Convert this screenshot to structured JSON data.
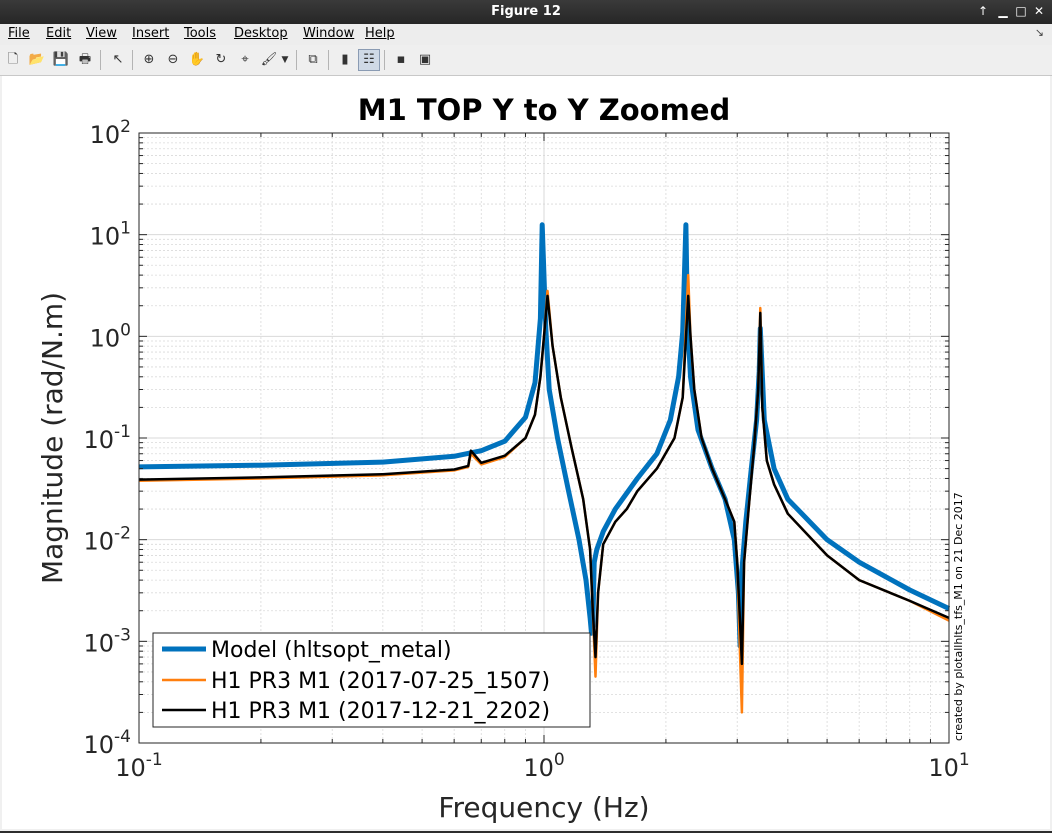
{
  "window": {
    "title": "Figure 12"
  },
  "menu": [
    "File",
    "Edit",
    "View",
    "Insert",
    "Tools",
    "Desktop",
    "Window",
    "Help"
  ],
  "toolbar": {
    "icons": [
      "new-figure-icon",
      "open-file-icon",
      "save-icon",
      "print-icon",
      "pointer-icon",
      "zoom-in-icon",
      "zoom-out-icon",
      "pan-hand-icon",
      "rotate-3d-icon",
      "data-cursor-icon",
      "brush-icon",
      "dropdown-arrow-icon",
      "link-plot-icon",
      "colorbar-icon",
      "legend-icon",
      "hide-plot-tools-icon",
      "show-plot-tools-icon"
    ]
  },
  "colors": {
    "model": "#0072bd",
    "jul": "#ff7f0e",
    "dec": "#000000",
    "grid": "#d9d9d9"
  },
  "chart_data": {
    "type": "line",
    "title": "M1 TOP Y to Y Zoomed",
    "xlabel": "Frequency (Hz)",
    "ylabel": "Magnitude (rad/N.m)",
    "xscale": "log",
    "yscale": "log",
    "xlim": [
      0.1,
      10
    ],
    "ylim": [
      0.0001,
      100
    ],
    "x_ticks": [
      {
        "base": "10",
        "exp": "-1"
      },
      {
        "base": "10",
        "exp": "0"
      },
      {
        "base": "10",
        "exp": "1"
      }
    ],
    "y_ticks": [
      {
        "base": "10",
        "exp": "-4"
      },
      {
        "base": "10",
        "exp": "-3"
      },
      {
        "base": "10",
        "exp": "-2"
      },
      {
        "base": "10",
        "exp": "-1"
      },
      {
        "base": "10",
        "exp": "0"
      },
      {
        "base": "10",
        "exp": "1"
      },
      {
        "base": "10",
        "exp": "2"
      }
    ],
    "grid": true,
    "legend_position": "bottom-left",
    "annotation": "created by plotallhlts_tfs_M1 on 21 Dec 2017",
    "series": [
      {
        "name": "Model (hltsopt_metal)",
        "x": [
          0.1,
          0.2,
          0.4,
          0.6,
          0.7,
          0.8,
          0.9,
          0.95,
          0.98,
          0.99,
          1.01,
          1.03,
          1.08,
          1.15,
          1.22,
          1.27,
          1.3,
          1.31,
          1.32,
          1.33,
          1.35,
          1.4,
          1.5,
          1.7,
          1.9,
          2.05,
          2.15,
          2.2,
          2.24,
          2.26,
          2.3,
          2.4,
          2.6,
          2.8,
          2.95,
          3.02,
          3.05,
          3.08,
          3.15,
          3.25,
          3.35,
          3.4,
          3.42,
          3.5,
          3.7,
          4.0,
          5.0,
          6.0,
          8.0,
          10.0
        ],
        "values": [
          0.052,
          0.054,
          0.058,
          0.066,
          0.075,
          0.093,
          0.16,
          0.35,
          1.5,
          12.5,
          1.2,
          0.3,
          0.1,
          0.03,
          0.01,
          0.004,
          0.0017,
          0.0012,
          0.0014,
          0.006,
          0.008,
          0.012,
          0.02,
          0.04,
          0.07,
          0.15,
          0.4,
          1.1,
          12.5,
          1.5,
          0.4,
          0.12,
          0.05,
          0.025,
          0.01,
          0.003,
          0.0009,
          0.005,
          0.015,
          0.05,
          0.15,
          0.45,
          1.2,
          0.15,
          0.05,
          0.025,
          0.01,
          0.006,
          0.0032,
          0.0021
        ]
      },
      {
        "name": "H1 PR3  M1 (2017-07-25_1507)",
        "x": [
          0.1,
          0.2,
          0.4,
          0.6,
          0.65,
          0.66,
          0.7,
          0.8,
          0.9,
          0.95,
          0.98,
          1.0,
          1.02,
          1.05,
          1.1,
          1.17,
          1.25,
          1.3,
          1.32,
          1.34,
          1.36,
          1.4,
          1.5,
          1.6,
          1.7,
          1.9,
          2.1,
          2.2,
          2.27,
          2.3,
          2.35,
          2.45,
          2.6,
          2.8,
          2.95,
          3.0,
          3.05,
          3.08,
          3.12,
          3.2,
          3.3,
          3.38,
          3.42,
          3.46,
          3.55,
          3.7,
          4.0,
          5.0,
          6.0,
          8.0,
          10.0
        ],
        "values": [
          0.038,
          0.04,
          0.043,
          0.048,
          0.052,
          0.07,
          0.055,
          0.065,
          0.1,
          0.17,
          0.4,
          1.0,
          2.8,
          0.8,
          0.25,
          0.08,
          0.025,
          0.008,
          0.002,
          0.00045,
          0.003,
          0.009,
          0.015,
          0.02,
          0.03,
          0.05,
          0.1,
          0.25,
          4.0,
          1.0,
          0.3,
          0.1,
          0.05,
          0.025,
          0.015,
          0.006,
          0.0007,
          0.0002,
          0.006,
          0.02,
          0.08,
          0.3,
          1.9,
          0.2,
          0.06,
          0.035,
          0.018,
          0.007,
          0.004,
          0.0025,
          0.0016
        ]
      },
      {
        "name": "H1 PR3  M1 (2017-12-21_2202)",
        "x": [
          0.1,
          0.2,
          0.4,
          0.6,
          0.65,
          0.66,
          0.7,
          0.8,
          0.9,
          0.95,
          0.98,
          1.0,
          1.02,
          1.05,
          1.1,
          1.17,
          1.25,
          1.3,
          1.32,
          1.34,
          1.36,
          1.4,
          1.5,
          1.6,
          1.7,
          1.9,
          2.1,
          2.2,
          2.27,
          2.3,
          2.35,
          2.45,
          2.6,
          2.8,
          2.95,
          3.0,
          3.05,
          3.08,
          3.12,
          3.2,
          3.3,
          3.38,
          3.42,
          3.46,
          3.55,
          3.7,
          4.0,
          5.0,
          6.0,
          8.0,
          10.0
        ],
        "values": [
          0.039,
          0.041,
          0.044,
          0.049,
          0.053,
          0.075,
          0.057,
          0.067,
          0.1,
          0.17,
          0.4,
          1.0,
          2.5,
          0.8,
          0.25,
          0.08,
          0.025,
          0.008,
          0.002,
          0.0007,
          0.003,
          0.009,
          0.015,
          0.02,
          0.03,
          0.05,
          0.1,
          0.25,
          2.5,
          1.0,
          0.3,
          0.1,
          0.05,
          0.025,
          0.015,
          0.006,
          0.0015,
          0.0006,
          0.006,
          0.02,
          0.08,
          0.3,
          1.7,
          0.2,
          0.06,
          0.035,
          0.018,
          0.007,
          0.004,
          0.0025,
          0.0017
        ]
      }
    ]
  }
}
